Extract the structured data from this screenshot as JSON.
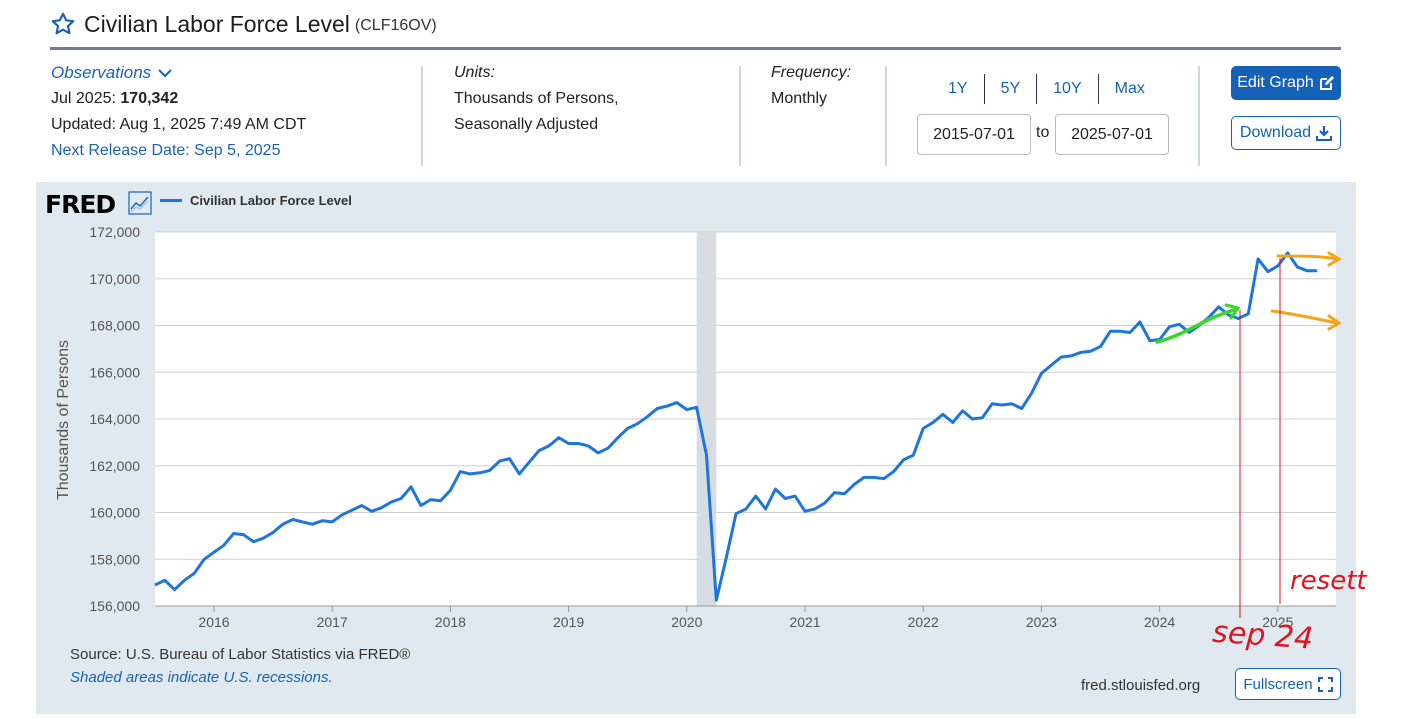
{
  "header": {
    "title": "Civilian Labor Force Level",
    "series_id": "(CLF16OV)"
  },
  "observations": {
    "label": "Observations",
    "latest_prefix": "Jul 2025:",
    "latest_value": "170,342",
    "updated": "Updated: Aug 1, 2025 7:49 AM CDT",
    "next_release": "Next Release Date: Sep 5, 2025"
  },
  "units": {
    "label": "Units:",
    "line1": "Thousands of Persons,",
    "line2": "Seasonally Adjusted"
  },
  "frequency": {
    "label": "Frequency:",
    "value": "Monthly"
  },
  "range": {
    "buttons": [
      "1Y",
      "5Y",
      "10Y",
      "Max"
    ],
    "start": "2015-07-01",
    "to_label": "to",
    "end": "2025-07-01"
  },
  "actions": {
    "edit": "Edit Graph",
    "download": "Download",
    "fullscreen": "Fullscreen"
  },
  "logo": "FRED",
  "footer": {
    "source": "Source: U.S. Bureau of Labor Statistics via FRED®",
    "note": "Shaded areas indicate U.S. recessions.",
    "url": "fred.stlouisfed.org"
  },
  "annotations": {
    "text1": "sep 24",
    "text2": "resett",
    "colors": {
      "green": "#3ad62a",
      "orange": "#f5a41a",
      "red": "#e0141e"
    }
  },
  "colors": {
    "series": "#1e75dd",
    "brand_blue": "#1561b7",
    "panel": "#e1e9f0",
    "recession": "#d7dde2"
  },
  "chart_data": {
    "type": "line",
    "title": "",
    "xlabel": "",
    "ylabel": "Thousands of Persons",
    "ylim": [
      156000,
      172000
    ],
    "y_ticks": [
      "156,000",
      "158,000",
      "160,000",
      "162,000",
      "164,000",
      "166,000",
      "168,000",
      "170,000",
      "172,000"
    ],
    "x_ticks": [
      "2016",
      "2017",
      "2018",
      "2019",
      "2020",
      "2021",
      "2022",
      "2023",
      "2024",
      "2025"
    ],
    "grid": true,
    "recession": [
      "2020-02",
      "2020-04"
    ],
    "series": [
      {
        "name": "Civilian Labor Force Level",
        "start": "2015-07",
        "values": [
          156900,
          157100,
          156700,
          157100,
          157400,
          158000,
          158300,
          158600,
          159100,
          159050,
          158750,
          158900,
          159150,
          159500,
          159700,
          159600,
          159500,
          159650,
          159600,
          159900,
          160100,
          160300,
          160050,
          160200,
          160450,
          160600,
          161100,
          160300,
          160550,
          160500,
          160950,
          161750,
          161650,
          161700,
          161800,
          162200,
          162300,
          161650,
          162150,
          162650,
          162850,
          163200,
          162950,
          162950,
          162850,
          162550,
          162750,
          163200,
          163600,
          163800,
          164100,
          164450,
          164550,
          164700,
          164400,
          164500,
          162450,
          156250,
          158050,
          159950,
          160150,
          160700,
          160150,
          161000,
          160600,
          160700,
          160050,
          160150,
          160400,
          160850,
          160800,
          161200,
          161500,
          161500,
          161450,
          161750,
          162250,
          162450,
          163600,
          163850,
          164200,
          163850,
          164350,
          164000,
          164050,
          164650,
          164600,
          164650,
          164450,
          165100,
          165950,
          166300,
          166650,
          166700,
          166850,
          166900,
          167100,
          167750,
          167750,
          167700,
          168150,
          167350,
          167400,
          167950,
          168050,
          167700,
          168000,
          168350,
          168800,
          168450,
          168300,
          168500,
          170850,
          170300,
          170550,
          171100,
          170500,
          170342,
          170342
        ]
      }
    ]
  }
}
